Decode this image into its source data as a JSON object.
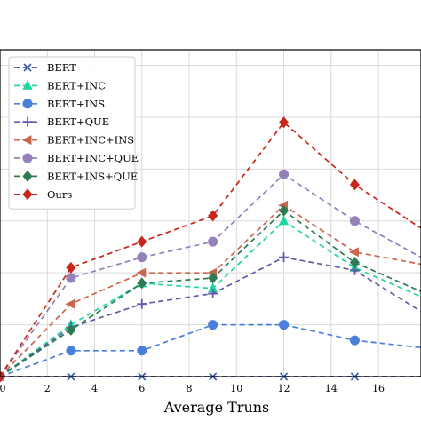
{
  "chart_data": {
    "type": "line",
    "xlabel": "Average Truns",
    "ylabel": "",
    "title": "",
    "xlim": [
      0,
      17.8
    ],
    "ylim": [
      0,
      6.3
    ],
    "x_ticks": [
      0,
      2,
      4,
      6,
      8,
      10,
      12,
      14,
      16
    ],
    "grid": true,
    "legend_position": "top-left",
    "series": [
      {
        "name": "BERT",
        "color": "#3a5aa8",
        "marker": "x",
        "x": [
          0,
          3,
          6,
          9,
          12,
          15,
          18
        ],
        "y": [
          0,
          0,
          0,
          0,
          0,
          0,
          0
        ]
      },
      {
        "name": "BERT+INC",
        "color": "#1fd6a0",
        "marker": "triangle",
        "x": [
          0,
          3,
          6,
          9,
          12,
          15,
          18
        ],
        "y": [
          0,
          1.0,
          1.8,
          1.7,
          3.0,
          2.1,
          1.5
        ]
      },
      {
        "name": "BERT+INS",
        "color": "#4a7fdc",
        "marker": "circle",
        "x": [
          0,
          3,
          6,
          9,
          12,
          15,
          18
        ],
        "y": [
          0,
          0.5,
          0.5,
          1.0,
          1.0,
          0.7,
          0.55
        ]
      },
      {
        "name": "BERT+QUE",
        "color": "#5c5ca8",
        "marker": "plus",
        "x": [
          0,
          3,
          6,
          9,
          12,
          15,
          18
        ],
        "y": [
          0,
          0.95,
          1.4,
          1.6,
          2.3,
          2.05,
          1.2
        ]
      },
      {
        "name": "BERT+INC+INS",
        "color": "#c9674f",
        "marker": "triangle-left",
        "x": [
          0,
          3,
          6,
          9,
          12,
          15,
          18
        ],
        "y": [
          0,
          1.4,
          2.0,
          2.0,
          3.3,
          2.4,
          2.15
        ]
      },
      {
        "name": "BERT+INC+QUE",
        "color": "#9381b8",
        "marker": "circle",
        "x": [
          0,
          3,
          6,
          9,
          12,
          15,
          18
        ],
        "y": [
          0,
          1.9,
          2.3,
          2.6,
          3.9,
          3.0,
          2.25
        ]
      },
      {
        "name": "BERT+INS+QUE",
        "color": "#2e7a52",
        "marker": "diamond",
        "x": [
          0,
          3,
          6,
          9,
          12,
          15,
          18
        ],
        "y": [
          0,
          0.9,
          1.8,
          1.9,
          3.2,
          2.2,
          1.6
        ]
      },
      {
        "name": "Ours",
        "color": "#c8261b",
        "marker": "diamond",
        "x": [
          0,
          3,
          6,
          9,
          12,
          15,
          18
        ],
        "y": [
          0,
          2.1,
          2.6,
          3.1,
          4.9,
          3.7,
          2.8
        ]
      }
    ]
  }
}
